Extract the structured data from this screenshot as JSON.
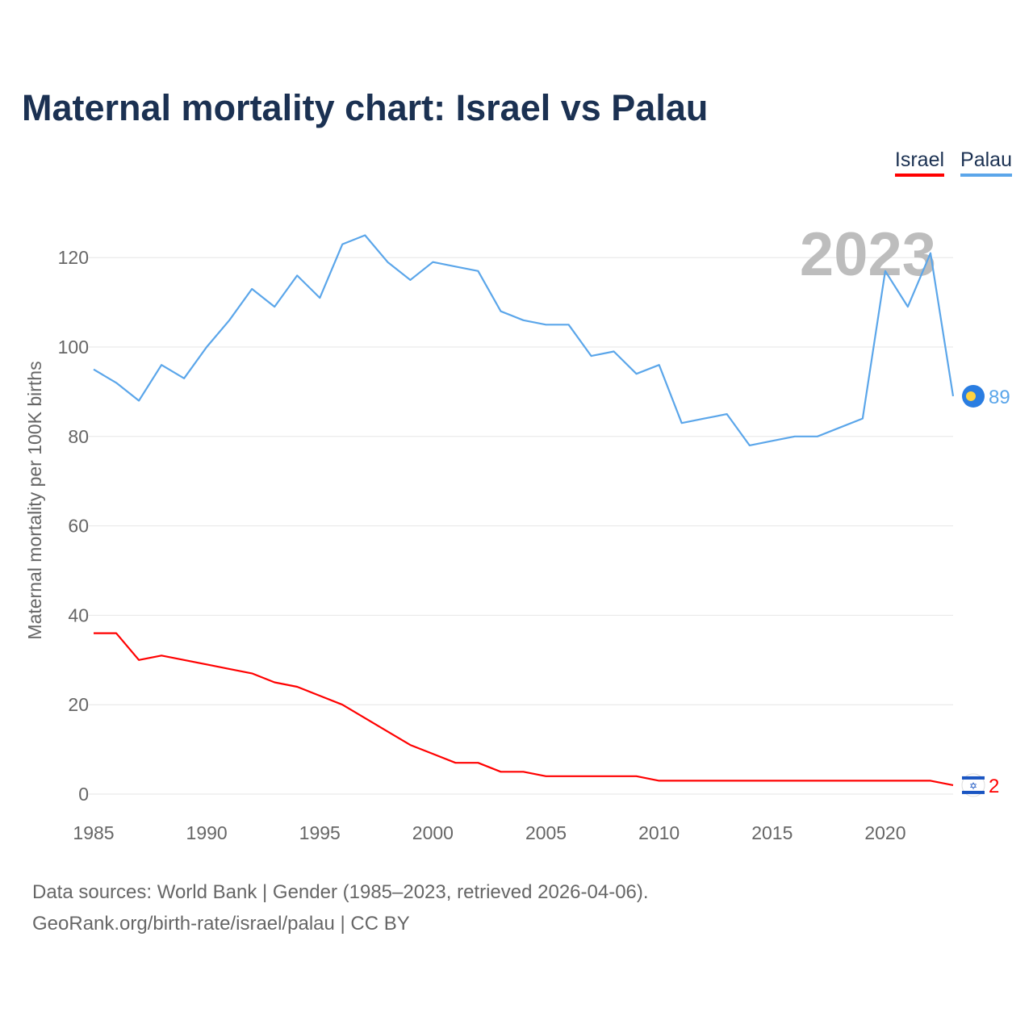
{
  "title": "Maternal mortality chart: Israel vs Palau",
  "legend": [
    {
      "label": "Israel",
      "color": "#ff0000"
    },
    {
      "label": "Palau",
      "color": "#5ba6ea"
    }
  ],
  "footer": {
    "line1": "Data sources: World Bank | Gender (1985–2023, retrieved 2026-04-06).",
    "line2": "GeoRank.org/birth-rate/israel/palau | CC BY"
  },
  "chart_data": {
    "type": "line",
    "title": "Maternal mortality chart: Israel vs Palau",
    "xlabel": "",
    "ylabel": "Maternal mortality per 100K births",
    "year_label": "2023",
    "xlim": [
      1985,
      2023
    ],
    "ylim": [
      0,
      130
    ],
    "x_ticks": [
      1985,
      1990,
      1995,
      2000,
      2005,
      2010,
      2015,
      2020
    ],
    "y_ticks": [
      0,
      20,
      40,
      60,
      80,
      100,
      120
    ],
    "grid": true,
    "legend_position": "top-right",
    "x": [
      1985,
      1986,
      1987,
      1988,
      1989,
      1990,
      1991,
      1992,
      1993,
      1994,
      1995,
      1996,
      1997,
      1998,
      1999,
      2000,
      2001,
      2002,
      2003,
      2004,
      2005,
      2006,
      2007,
      2008,
      2009,
      2010,
      2011,
      2012,
      2013,
      2014,
      2015,
      2016,
      2017,
      2018,
      2019,
      2020,
      2021,
      2022,
      2023
    ],
    "series": [
      {
        "name": "Israel",
        "color": "#ff0000",
        "end_label": "2",
        "icon": "israel-flag-icon",
        "values": [
          36,
          36,
          30,
          31,
          30,
          29,
          28,
          27,
          25,
          24,
          22,
          20,
          17,
          14,
          11,
          9,
          7,
          7,
          5,
          5,
          4,
          4,
          4,
          4,
          4,
          3,
          3,
          3,
          3,
          3,
          3,
          3,
          3,
          3,
          3,
          3,
          3,
          3,
          2
        ]
      },
      {
        "name": "Palau",
        "color": "#5ba6ea",
        "end_label": "89",
        "icon": "palau-flag-icon",
        "values": [
          95,
          92,
          88,
          96,
          93,
          100,
          106,
          113,
          109,
          116,
          111,
          123,
          125,
          119,
          115,
          119,
          118,
          117,
          108,
          106,
          105,
          105,
          98,
          99,
          94,
          96,
          83,
          84,
          85,
          78,
          79,
          80,
          80,
          82,
          84,
          117,
          109,
          121,
          89
        ]
      }
    ]
  }
}
